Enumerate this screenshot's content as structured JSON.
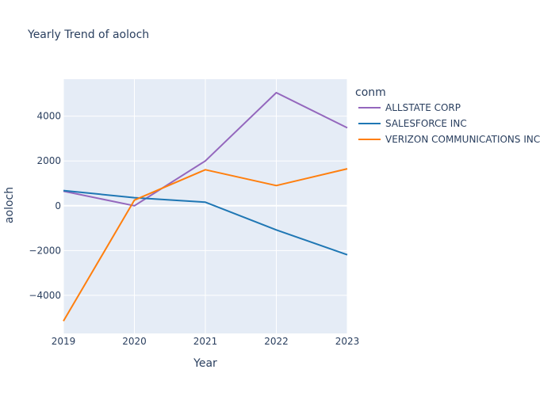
{
  "chart_data": {
    "type": "line",
    "title": "Yearly Trend of aoloch",
    "xlabel": "Year",
    "ylabel": "aoloch",
    "x": [
      2019,
      2020,
      2021,
      2022,
      2023
    ],
    "xlim": [
      2019,
      2023
    ],
    "ylim": [
      -5700,
      5650
    ],
    "yticks": [
      -4000,
      -2000,
      0,
      2000,
      4000
    ],
    "grid": true,
    "legend": {
      "title": "conm",
      "placement": "right"
    },
    "series": [
      {
        "name": "ALLSTATE CORP",
        "color": "#9467bd",
        "values": [
          650,
          0,
          2000,
          5050,
          3480
        ]
      },
      {
        "name": "SALESFORCE INC",
        "color": "#1f77b4",
        "values": [
          680,
          360,
          160,
          -1080,
          -2190
        ]
      },
      {
        "name": "VERIZON COMMUNICATIONS INC",
        "color": "#ff7f0e",
        "values": [
          -5150,
          250,
          1610,
          900,
          1650
        ]
      }
    ]
  }
}
